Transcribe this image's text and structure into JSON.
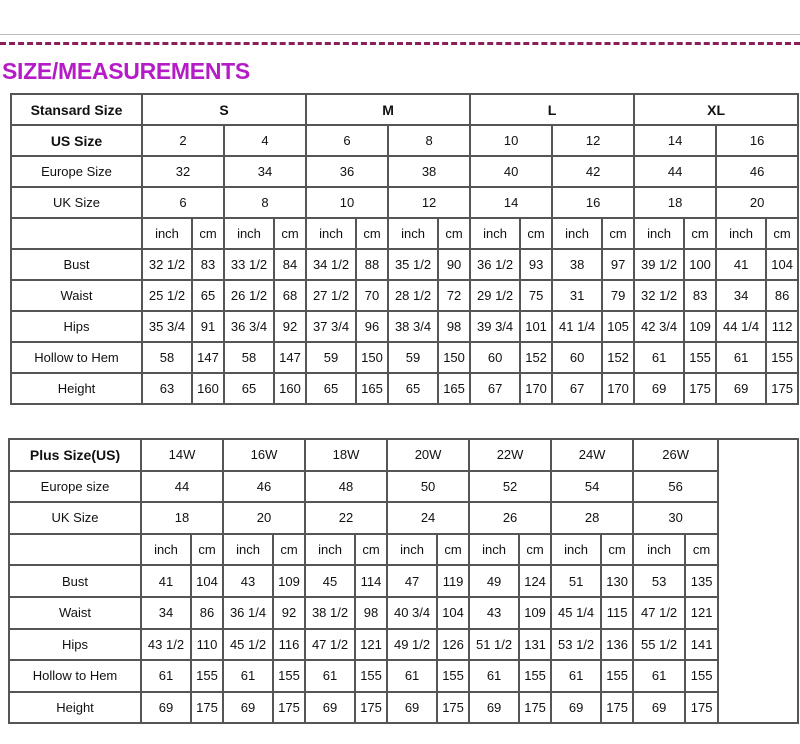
{
  "title": "SIZE/MEASUREMENTS",
  "colors": {
    "title": "#b51cc7",
    "dash_line": "#8a1f5a",
    "grid": "#555555"
  },
  "standard_table": {
    "header_label": "Stansard Size",
    "groups": [
      "S",
      "M",
      "L",
      "XL"
    ],
    "size_rows": [
      {
        "label": "US Size",
        "values": [
          "2",
          "4",
          "6",
          "8",
          "10",
          "12",
          "14",
          "16"
        ]
      },
      {
        "label": "Europe Size",
        "values": [
          "32",
          "34",
          "36",
          "38",
          "40",
          "42",
          "44",
          "46"
        ]
      },
      {
        "label": "UK Size",
        "values": [
          "6",
          "8",
          "10",
          "12",
          "14",
          "16",
          "18",
          "20"
        ]
      }
    ],
    "units": [
      "inch",
      "cm",
      "inch",
      "cm",
      "inch",
      "cm",
      "inch",
      "cm",
      "inch",
      "cm",
      "inch",
      "cm",
      "inch",
      "cm",
      "inch",
      "cm"
    ],
    "measure_rows": [
      {
        "label": "Bust",
        "values": [
          "32 1/2",
          "83",
          "33 1/2",
          "84",
          "34 1/2",
          "88",
          "35 1/2",
          "90",
          "36 1/2",
          "93",
          "38",
          "97",
          "39 1/2",
          "100",
          "41",
          "104"
        ]
      },
      {
        "label": "Waist",
        "values": [
          "25 1/2",
          "65",
          "26 1/2",
          "68",
          "27 1/2",
          "70",
          "28 1/2",
          "72",
          "29 1/2",
          "75",
          "31",
          "79",
          "32 1/2",
          "83",
          "34",
          "86"
        ]
      },
      {
        "label": "Hips",
        "values": [
          "35 3/4",
          "91",
          "36 3/4",
          "92",
          "37 3/4",
          "96",
          "38 3/4",
          "98",
          "39 3/4",
          "101",
          "41 1/4",
          "105",
          "42 3/4",
          "109",
          "44 1/4",
          "112"
        ]
      },
      {
        "label": "Hollow to Hem",
        "values": [
          "58",
          "147",
          "58",
          "147",
          "59",
          "150",
          "59",
          "150",
          "60",
          "152",
          "60",
          "152",
          "61",
          "155",
          "61",
          "155"
        ]
      },
      {
        "label": "Height",
        "values": [
          "63",
          "160",
          "65",
          "160",
          "65",
          "165",
          "65",
          "165",
          "67",
          "170",
          "67",
          "170",
          "69",
          "175",
          "69",
          "175"
        ]
      }
    ]
  },
  "plus_table": {
    "header_label": "Plus Size(US)",
    "sizes": [
      "14W",
      "16W",
      "18W",
      "20W",
      "22W",
      "24W",
      "26W"
    ],
    "size_rows": [
      {
        "label": "Europe size",
        "values": [
          "44",
          "46",
          "48",
          "50",
          "52",
          "54",
          "56"
        ]
      },
      {
        "label": "UK Size",
        "values": [
          "18",
          "20",
          "22",
          "24",
          "26",
          "28",
          "30"
        ]
      }
    ],
    "units": [
      "inch",
      "cm",
      "inch",
      "cm",
      "inch",
      "cm",
      "inch",
      "cm",
      "inch",
      "cm",
      "inch",
      "cm",
      "inch",
      "cm"
    ],
    "measure_rows": [
      {
        "label": "Bust",
        "values": [
          "41",
          "104",
          "43",
          "109",
          "45",
          "114",
          "47",
          "119",
          "49",
          "124",
          "51",
          "130",
          "53",
          "135"
        ]
      },
      {
        "label": "Waist",
        "values": [
          "34",
          "86",
          "36 1/4",
          "92",
          "38 1/2",
          "98",
          "40 3/4",
          "104",
          "43",
          "109",
          "45 1/4",
          "115",
          "47 1/2",
          "121"
        ]
      },
      {
        "label": "Hips",
        "values": [
          "43 1/2",
          "110",
          "45 1/2",
          "116",
          "47 1/2",
          "121",
          "49 1/2",
          "126",
          "51 1/2",
          "131",
          "53 1/2",
          "136",
          "55 1/2",
          "141"
        ]
      },
      {
        "label": "Hollow to Hem",
        "values": [
          "61",
          "155",
          "61",
          "155",
          "61",
          "155",
          "61",
          "155",
          "61",
          "155",
          "61",
          "155",
          "61",
          "155"
        ]
      },
      {
        "label": "Height",
        "values": [
          "69",
          "175",
          "69",
          "175",
          "69",
          "175",
          "69",
          "175",
          "69",
          "175",
          "69",
          "175",
          "69",
          "175"
        ]
      }
    ]
  }
}
